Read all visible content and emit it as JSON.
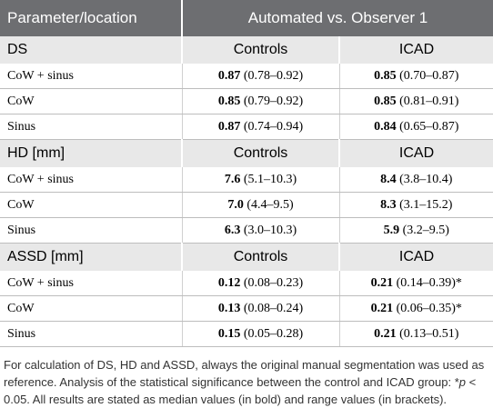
{
  "table": {
    "header": [
      "Parameter/location",
      "Automated vs. Observer 1"
    ],
    "sections": [
      {
        "label": "DS",
        "groups": [
          "Controls",
          "ICAD"
        ],
        "rows": [
          {
            "location": "CoW + sinus",
            "cells": [
              {
                "median": "0.87",
                "range": "(0.78–0.92)"
              },
              {
                "median": "0.85",
                "range": "(0.70–0.87)"
              }
            ]
          },
          {
            "location": "CoW",
            "cells": [
              {
                "median": "0.85",
                "range": "(0.79–0.92)"
              },
              {
                "median": "0.85",
                "range": "(0.81–0.91)"
              }
            ]
          },
          {
            "location": "Sinus",
            "cells": [
              {
                "median": "0.87",
                "range": "(0.74–0.94)"
              },
              {
                "median": "0.84",
                "range": "(0.65–0.87)"
              }
            ]
          }
        ]
      },
      {
        "label": "HD [mm]",
        "groups": [
          "Controls",
          "ICAD"
        ],
        "rows": [
          {
            "location": "CoW + sinus",
            "cells": [
              {
                "median": "7.6",
                "range": "(5.1–10.3)"
              },
              {
                "median": "8.4",
                "range": "(3.8–10.4)"
              }
            ]
          },
          {
            "location": "CoW",
            "cells": [
              {
                "median": "7.0",
                "range": "(4.4–9.5)"
              },
              {
                "median": "8.3",
                "range": "(3.1–15.2)"
              }
            ]
          },
          {
            "location": "Sinus",
            "cells": [
              {
                "median": "6.3",
                "range": "(3.0–10.3)"
              },
              {
                "median": "5.9",
                "range": "(3.2–9.5)"
              }
            ]
          }
        ]
      },
      {
        "label": "ASSD [mm]",
        "groups": [
          "Controls",
          "ICAD"
        ],
        "rows": [
          {
            "location": "CoW + sinus",
            "cells": [
              {
                "median": "0.12",
                "range": "(0.08–0.23)"
              },
              {
                "median": "0.21",
                "range": "(0.14–0.39)*"
              }
            ]
          },
          {
            "location": "CoW",
            "cells": [
              {
                "median": "0.13",
                "range": "(0.08–0.24)"
              },
              {
                "median": "0.21",
                "range": "(0.06–0.35)*"
              }
            ]
          },
          {
            "location": "Sinus",
            "cells": [
              {
                "median": "0.15",
                "range": "(0.05–0.28)"
              },
              {
                "median": "0.21",
                "range": "(0.13–0.51)"
              }
            ]
          }
        ]
      }
    ]
  },
  "footnote": {
    "before": "For calculation of DS, HD and ASSD, always the original manual segmentation was used as reference. Analysis of the statistical significance between the control and ICAD group: *",
    "italic": "p",
    "after": " < 0.05. All results are stated as median values (in bold) and range values (in brackets)."
  }
}
